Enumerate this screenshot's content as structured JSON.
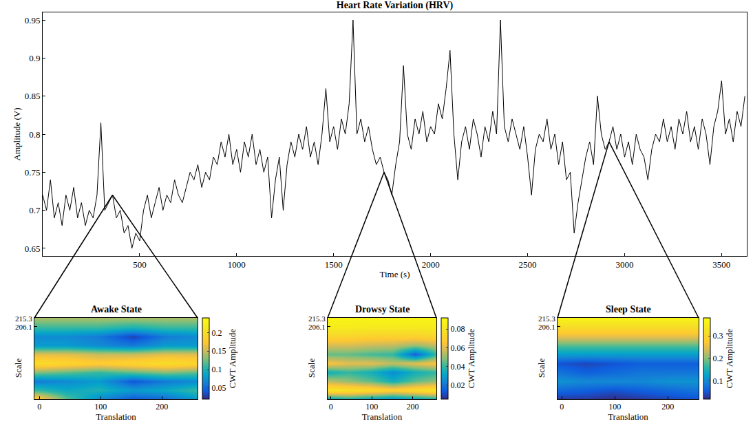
{
  "chart_data": [
    {
      "type": "line",
      "title": "Heart Rate Variation (HRV)",
      "xlabel": "Time (s)",
      "ylabel": "Amplitude (V)",
      "x": [
        0,
        20,
        40,
        60,
        80,
        100,
        120,
        140,
        160,
        180,
        200,
        220,
        240,
        260,
        280,
        300,
        320,
        340,
        360,
        380,
        400,
        420,
        440,
        460,
        480,
        500,
        520,
        540,
        560,
        580,
        600,
        620,
        640,
        660,
        680,
        700,
        720,
        740,
        760,
        780,
        800,
        820,
        840,
        860,
        880,
        900,
        920,
        940,
        960,
        980,
        1000,
        1020,
        1040,
        1060,
        1080,
        1100,
        1120,
        1140,
        1160,
        1180,
        1200,
        1220,
        1240,
        1260,
        1280,
        1300,
        1320,
        1340,
        1360,
        1380,
        1400,
        1420,
        1440,
        1460,
        1480,
        1500,
        1520,
        1540,
        1560,
        1580,
        1600,
        1620,
        1640,
        1660,
        1680,
        1700,
        1720,
        1740,
        1760,
        1780,
        1800,
        1820,
        1840,
        1860,
        1880,
        1900,
        1920,
        1940,
        1960,
        1980,
        2000,
        2020,
        2040,
        2060,
        2080,
        2100,
        2120,
        2140,
        2160,
        2180,
        2200,
        2220,
        2240,
        2260,
        2280,
        2300,
        2320,
        2340,
        2360,
        2380,
        2400,
        2420,
        2440,
        2460,
        2480,
        2500,
        2520,
        2540,
        2560,
        2580,
        2600,
        2620,
        2640,
        2660,
        2680,
        2700,
        2720,
        2740,
        2760,
        2780,
        2800,
        2820,
        2840,
        2860,
        2880,
        2900,
        2920,
        2940,
        2960,
        2980,
        3000,
        3020,
        3040,
        3060,
        3080,
        3100,
        3120,
        3140,
        3160,
        3180,
        3200,
        3220,
        3240,
        3260,
        3280,
        3300,
        3320,
        3340,
        3360,
        3380,
        3400,
        3420,
        3440,
        3460,
        3480,
        3500,
        3520,
        3540,
        3560,
        3580,
        3600,
        3620
      ],
      "values": [
        0.72,
        0.7,
        0.74,
        0.69,
        0.71,
        0.68,
        0.72,
        0.7,
        0.73,
        0.69,
        0.71,
        0.68,
        0.7,
        0.69,
        0.72,
        0.815,
        0.7,
        0.71,
        0.72,
        0.69,
        0.7,
        0.67,
        0.68,
        0.65,
        0.67,
        0.66,
        0.7,
        0.72,
        0.69,
        0.71,
        0.73,
        0.7,
        0.72,
        0.71,
        0.74,
        0.72,
        0.71,
        0.73,
        0.75,
        0.74,
        0.76,
        0.73,
        0.75,
        0.74,
        0.77,
        0.76,
        0.79,
        0.77,
        0.8,
        0.76,
        0.78,
        0.75,
        0.79,
        0.77,
        0.8,
        0.76,
        0.78,
        0.75,
        0.77,
        0.69,
        0.74,
        0.77,
        0.7,
        0.76,
        0.79,
        0.77,
        0.8,
        0.78,
        0.81,
        0.77,
        0.79,
        0.76,
        0.8,
        0.86,
        0.79,
        0.81,
        0.78,
        0.82,
        0.8,
        0.84,
        0.95,
        0.8,
        0.82,
        0.79,
        0.81,
        0.78,
        0.76,
        0.77,
        0.75,
        0.74,
        0.72,
        0.76,
        0.79,
        0.89,
        0.8,
        0.78,
        0.82,
        0.8,
        0.83,
        0.79,
        0.81,
        0.8,
        0.84,
        0.82,
        0.86,
        0.91,
        0.8,
        0.74,
        0.79,
        0.81,
        0.78,
        0.82,
        0.8,
        0.77,
        0.81,
        0.79,
        0.83,
        0.8,
        0.95,
        0.81,
        0.79,
        0.82,
        0.8,
        0.78,
        0.81,
        0.77,
        0.72,
        0.78,
        0.8,
        0.79,
        0.82,
        0.78,
        0.8,
        0.76,
        0.79,
        0.74,
        0.75,
        0.67,
        0.71,
        0.74,
        0.77,
        0.79,
        0.76,
        0.85,
        0.8,
        0.78,
        0.79,
        0.81,
        0.78,
        0.8,
        0.77,
        0.79,
        0.76,
        0.8,
        0.78,
        0.77,
        0.74,
        0.78,
        0.8,
        0.79,
        0.82,
        0.79,
        0.81,
        0.78,
        0.82,
        0.8,
        0.83,
        0.79,
        0.81,
        0.78,
        0.82,
        0.8,
        0.76,
        0.81,
        0.83,
        0.87,
        0.8,
        0.82,
        0.79,
        0.83,
        0.81,
        0.85
      ],
      "color": "#000000",
      "grid": false,
      "xlim": [
        0,
        3630
      ],
      "xticks": [
        500,
        1000,
        1500,
        2000,
        2500,
        3000,
        3500
      ],
      "ylim": [
        0.64,
        0.96
      ],
      "yticks": [
        0.65,
        0.7,
        0.75,
        0.8,
        0.85,
        0.9,
        0.95
      ]
    },
    {
      "type": "heatmap",
      "title": "Awake State",
      "xlabel": "Translation",
      "ylabel": "Scale",
      "colorbar_title": "CWT Amplitude",
      "time": 360,
      "x": [
        -8,
        45,
        98,
        152,
        205,
        258
      ],
      "y": [
        125,
        135,
        145,
        155,
        165,
        175,
        185,
        195,
        205,
        216
      ],
      "z": [
        [
          0.19,
          0.12,
          0.07,
          0.04,
          0.05,
          0.08
        ],
        [
          0.11,
          0.09,
          0.1,
          0.08,
          0.09,
          0.11
        ],
        [
          0.06,
          0.07,
          0.08,
          0.04,
          0.06,
          0.07
        ],
        [
          0.13,
          0.12,
          0.11,
          0.12,
          0.13,
          0.12
        ],
        [
          0.2,
          0.19,
          0.18,
          0.19,
          0.2,
          0.19
        ],
        [
          0.16,
          0.16,
          0.15,
          0.15,
          0.16,
          0.16
        ],
        [
          0.08,
          0.08,
          0.07,
          0.06,
          0.08,
          0.08
        ],
        [
          0.07,
          0.07,
          0.06,
          0.03,
          0.06,
          0.07
        ],
        [
          0.11,
          0.11,
          0.11,
          0.1,
          0.11,
          0.11
        ],
        [
          0.14,
          0.14,
          0.14,
          0.14,
          0.14,
          0.14
        ]
      ],
      "xlim": [
        -8,
        258
      ],
      "xticks": [
        0,
        100,
        200
      ],
      "ylim": [
        125,
        216
      ],
      "yticks": [
        215.3,
        206.1
      ],
      "zlim": [
        0.02,
        0.24
      ],
      "zticks": [
        0.05,
        0.1,
        0.15,
        0.2
      ]
    },
    {
      "type": "heatmap",
      "title": "Drowsy State",
      "xlabel": "Translation",
      "ylabel": "Scale",
      "colorbar_title": "CWT Amplitude",
      "time": 1760,
      "x": [
        -8,
        45,
        98,
        152,
        205,
        258
      ],
      "y": [
        125,
        135,
        145,
        155,
        165,
        175,
        185,
        195,
        205,
        216
      ],
      "z": [
        [
          0.03,
          0.035,
          0.03,
          0.025,
          0.03,
          0.035
        ],
        [
          0.08,
          0.078,
          0.075,
          0.07,
          0.075,
          0.08
        ],
        [
          0.055,
          0.05,
          0.045,
          0.035,
          0.045,
          0.05
        ],
        [
          0.035,
          0.04,
          0.035,
          0.025,
          0.035,
          0.04
        ],
        [
          0.065,
          0.06,
          0.06,
          0.055,
          0.06,
          0.065
        ],
        [
          0.045,
          0.045,
          0.042,
          0.04,
          0.015,
          0.04
        ],
        [
          0.058,
          0.058,
          0.056,
          0.055,
          0.05,
          0.055
        ],
        [
          0.072,
          0.072,
          0.07,
          0.07,
          0.07,
          0.072
        ],
        [
          0.083,
          0.083,
          0.082,
          0.082,
          0.082,
          0.083
        ],
        [
          0.088,
          0.088,
          0.088,
          0.088,
          0.088,
          0.088
        ]
      ],
      "xlim": [
        -8,
        258
      ],
      "xticks": [
        0,
        100,
        200
      ],
      "ylim": [
        125,
        216
      ],
      "yticks": [
        215.3,
        206.1
      ],
      "zlim": [
        0.005,
        0.092
      ],
      "zticks": [
        0.02,
        0.04,
        0.06,
        0.08
      ]
    },
    {
      "type": "heatmap",
      "title": "Sleep State",
      "xlabel": "Translation",
      "ylabel": "Scale",
      "colorbar_title": "CWT Amplitude",
      "time": 2920,
      "x": [
        -8,
        45,
        98,
        152,
        205,
        258
      ],
      "y": [
        125,
        135,
        145,
        155,
        165,
        175,
        185,
        195,
        205,
        216
      ],
      "z": [
        [
          0.03,
          0.03,
          0.02,
          0.03,
          0.04,
          0.05
        ],
        [
          0.07,
          0.06,
          0.05,
          0.06,
          0.07,
          0.08
        ],
        [
          0.11,
          0.1,
          0.1,
          0.1,
          0.11,
          0.11
        ],
        [
          0.08,
          0.06,
          0.07,
          0.08,
          0.08,
          0.08
        ],
        [
          0.05,
          0.04,
          0.05,
          0.06,
          0.06,
          0.06
        ],
        [
          0.12,
          0.12,
          0.12,
          0.12,
          0.12,
          0.12
        ],
        [
          0.18,
          0.18,
          0.18,
          0.18,
          0.18,
          0.18
        ],
        [
          0.25,
          0.25,
          0.25,
          0.25,
          0.25,
          0.25
        ],
        [
          0.31,
          0.31,
          0.31,
          0.31,
          0.31,
          0.31
        ],
        [
          0.36,
          0.36,
          0.36,
          0.36,
          0.36,
          0.36
        ]
      ],
      "xlim": [
        -8,
        258
      ],
      "xticks": [
        0,
        100,
        200
      ],
      "ylim": [
        125,
        216
      ],
      "yticks": [
        215.3,
        206.1
      ],
      "zlim": [
        0.02,
        0.38
      ],
      "zticks": [
        0.1,
        0.2,
        0.3
      ]
    }
  ]
}
